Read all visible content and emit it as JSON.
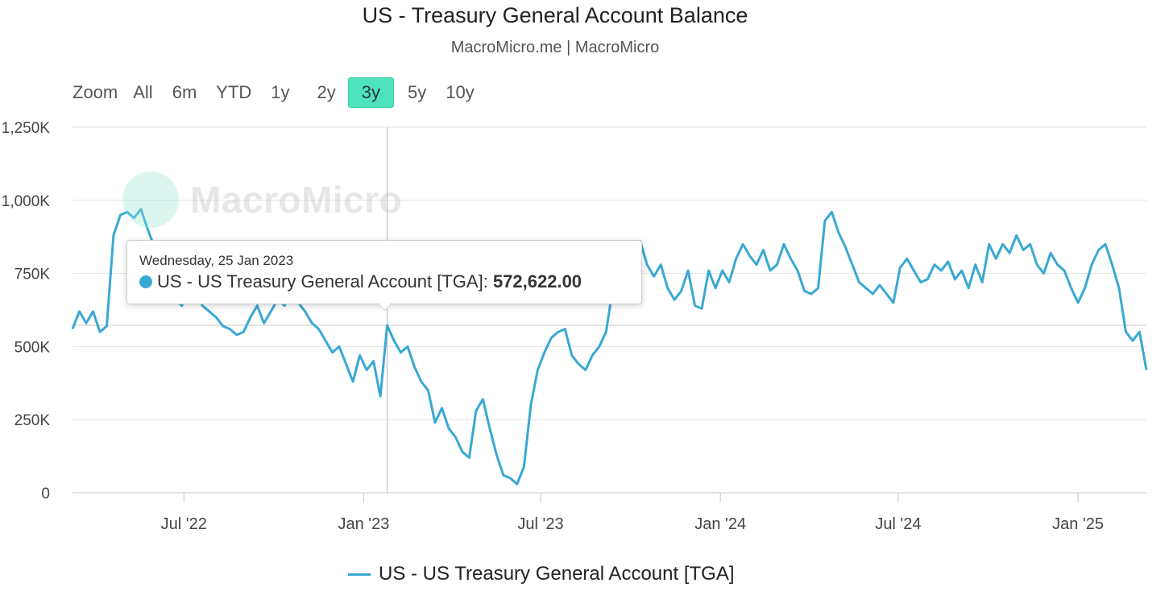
{
  "header": {
    "title": "US - Treasury General Account Balance",
    "subtitle": "MacroMicro.me | MacroMicro"
  },
  "range_selector": {
    "zoom_label": "Zoom",
    "buttons": [
      "All",
      "6m",
      "YTD",
      "1y",
      "2y",
      "3y",
      "5y",
      "10y"
    ],
    "active": "3y",
    "active_color": "#4fe3bb"
  },
  "watermark": {
    "text": "MacroMicro"
  },
  "tooltip": {
    "date": "Wednesday, 25 Jan 2023",
    "series_label": "US - US Treasury General Account [TGA]",
    "value": "572,622.00",
    "x": "2023-01-25",
    "y": 572622
  },
  "legend": {
    "label": "US - US Treasury General Account [TGA]",
    "color": "#3aa8d4"
  },
  "chart_data": {
    "type": "line",
    "x_type": "date",
    "ylim": [
      0,
      1250000
    ],
    "y_ticks": [
      0,
      250000,
      500000,
      750000,
      1000000,
      1250000
    ],
    "y_tick_labels": [
      "0",
      "250K",
      "500K",
      "750K",
      "1,000K",
      "1,250K"
    ],
    "x_ticks": [
      "2022-07-01",
      "2023-01-01",
      "2023-07-01",
      "2024-01-01",
      "2024-07-01",
      "2025-01-01"
    ],
    "x_tick_labels": [
      "Jul '22",
      "Jan '23",
      "Jul '23",
      "Jan '24",
      "Jul '24",
      "Jan '25"
    ],
    "xlim": [
      "2022-03-09",
      "2025-03-12"
    ],
    "grid": true,
    "legend_position": "bottom",
    "series": [
      {
        "name": "US - US Treasury General Account [TGA]",
        "color": "#3aa8d4",
        "points": [
          [
            "2022-03-09",
            560000
          ],
          [
            "2022-03-16",
            620000
          ],
          [
            "2022-03-23",
            580000
          ],
          [
            "2022-03-30",
            620000
          ],
          [
            "2022-04-06",
            550000
          ],
          [
            "2022-04-13",
            570000
          ],
          [
            "2022-04-20",
            880000
          ],
          [
            "2022-04-27",
            950000
          ],
          [
            "2022-05-04",
            960000
          ],
          [
            "2022-05-11",
            940000
          ],
          [
            "2022-05-18",
            970000
          ],
          [
            "2022-05-25",
            900000
          ],
          [
            "2022-06-01",
            840000
          ],
          [
            "2022-06-08",
            760000
          ],
          [
            "2022-06-15",
            700000
          ],
          [
            "2022-06-22",
            660000
          ],
          [
            "2022-06-29",
            640000
          ],
          [
            "2022-07-06",
            700000
          ],
          [
            "2022-07-13",
            680000
          ],
          [
            "2022-07-20",
            640000
          ],
          [
            "2022-07-27",
            620000
          ],
          [
            "2022-08-03",
            600000
          ],
          [
            "2022-08-10",
            570000
          ],
          [
            "2022-08-17",
            560000
          ],
          [
            "2022-08-24",
            540000
          ],
          [
            "2022-08-31",
            550000
          ],
          [
            "2022-09-07",
            600000
          ],
          [
            "2022-09-14",
            640000
          ],
          [
            "2022-09-21",
            580000
          ],
          [
            "2022-09-28",
            620000
          ],
          [
            "2022-10-05",
            660000
          ],
          [
            "2022-10-12",
            640000
          ],
          [
            "2022-10-19",
            680000
          ],
          [
            "2022-10-26",
            650000
          ],
          [
            "2022-11-02",
            620000
          ],
          [
            "2022-11-09",
            580000
          ],
          [
            "2022-11-16",
            560000
          ],
          [
            "2022-11-23",
            520000
          ],
          [
            "2022-11-30",
            480000
          ],
          [
            "2022-12-07",
            500000
          ],
          [
            "2022-12-14",
            440000
          ],
          [
            "2022-12-21",
            380000
          ],
          [
            "2022-12-28",
            470000
          ],
          [
            "2023-01-04",
            420000
          ],
          [
            "2023-01-11",
            450000
          ],
          [
            "2023-01-18",
            330000
          ],
          [
            "2023-01-25",
            572622
          ],
          [
            "2023-02-01",
            520000
          ],
          [
            "2023-02-08",
            480000
          ],
          [
            "2023-02-15",
            500000
          ],
          [
            "2023-02-22",
            430000
          ],
          [
            "2023-03-01",
            380000
          ],
          [
            "2023-03-08",
            350000
          ],
          [
            "2023-03-15",
            240000
          ],
          [
            "2023-03-22",
            290000
          ],
          [
            "2023-03-29",
            220000
          ],
          [
            "2023-04-05",
            190000
          ],
          [
            "2023-04-12",
            140000
          ],
          [
            "2023-04-19",
            120000
          ],
          [
            "2023-04-26",
            280000
          ],
          [
            "2023-05-03",
            320000
          ],
          [
            "2023-05-10",
            220000
          ],
          [
            "2023-05-17",
            130000
          ],
          [
            "2023-05-24",
            60000
          ],
          [
            "2023-05-31",
            50000
          ],
          [
            "2023-06-07",
            30000
          ],
          [
            "2023-06-14",
            90000
          ],
          [
            "2023-06-21",
            300000
          ],
          [
            "2023-06-28",
            420000
          ],
          [
            "2023-07-05",
            480000
          ],
          [
            "2023-07-12",
            530000
          ],
          [
            "2023-07-19",
            550000
          ],
          [
            "2023-07-26",
            560000
          ],
          [
            "2023-08-02",
            470000
          ],
          [
            "2023-08-09",
            440000
          ],
          [
            "2023-08-16",
            420000
          ],
          [
            "2023-08-23",
            470000
          ],
          [
            "2023-08-30",
            500000
          ],
          [
            "2023-09-06",
            550000
          ],
          [
            "2023-09-13",
            700000
          ],
          [
            "2023-09-20",
            780000
          ],
          [
            "2023-09-27",
            790000
          ],
          [
            "2023-10-04",
            830000
          ],
          [
            "2023-10-11",
            860000
          ],
          [
            "2023-10-18",
            780000
          ],
          [
            "2023-10-25",
            740000
          ],
          [
            "2023-11-01",
            780000
          ],
          [
            "2023-11-08",
            700000
          ],
          [
            "2023-11-15",
            660000
          ],
          [
            "2023-11-22",
            690000
          ],
          [
            "2023-11-29",
            760000
          ],
          [
            "2023-12-06",
            640000
          ],
          [
            "2023-12-13",
            630000
          ],
          [
            "2023-12-20",
            760000
          ],
          [
            "2023-12-27",
            700000
          ],
          [
            "2024-01-03",
            760000
          ],
          [
            "2024-01-10",
            720000
          ],
          [
            "2024-01-17",
            800000
          ],
          [
            "2024-01-24",
            850000
          ],
          [
            "2024-01-31",
            810000
          ],
          [
            "2024-02-07",
            780000
          ],
          [
            "2024-02-14",
            830000
          ],
          [
            "2024-02-21",
            760000
          ],
          [
            "2024-02-28",
            780000
          ],
          [
            "2024-03-06",
            850000
          ],
          [
            "2024-03-13",
            800000
          ],
          [
            "2024-03-20",
            760000
          ],
          [
            "2024-03-27",
            690000
          ],
          [
            "2024-04-03",
            680000
          ],
          [
            "2024-04-10",
            700000
          ],
          [
            "2024-04-17",
            930000
          ],
          [
            "2024-04-24",
            960000
          ],
          [
            "2024-05-01",
            890000
          ],
          [
            "2024-05-08",
            840000
          ],
          [
            "2024-05-15",
            780000
          ],
          [
            "2024-05-22",
            720000
          ],
          [
            "2024-05-29",
            700000
          ],
          [
            "2024-06-05",
            680000
          ],
          [
            "2024-06-12",
            710000
          ],
          [
            "2024-06-19",
            680000
          ],
          [
            "2024-06-26",
            650000
          ],
          [
            "2024-07-03",
            770000
          ],
          [
            "2024-07-10",
            800000
          ],
          [
            "2024-07-17",
            760000
          ],
          [
            "2024-07-24",
            720000
          ],
          [
            "2024-07-31",
            730000
          ],
          [
            "2024-08-07",
            780000
          ],
          [
            "2024-08-14",
            760000
          ],
          [
            "2024-08-21",
            790000
          ],
          [
            "2024-08-28",
            730000
          ],
          [
            "2024-09-04",
            760000
          ],
          [
            "2024-09-11",
            700000
          ],
          [
            "2024-09-18",
            780000
          ],
          [
            "2024-09-25",
            720000
          ],
          [
            "2024-10-02",
            850000
          ],
          [
            "2024-10-09",
            800000
          ],
          [
            "2024-10-16",
            850000
          ],
          [
            "2024-10-23",
            820000
          ],
          [
            "2024-10-30",
            880000
          ],
          [
            "2024-11-06",
            830000
          ],
          [
            "2024-11-13",
            850000
          ],
          [
            "2024-11-20",
            780000
          ],
          [
            "2024-11-27",
            750000
          ],
          [
            "2024-12-04",
            820000
          ],
          [
            "2024-12-11",
            780000
          ],
          [
            "2024-12-18",
            760000
          ],
          [
            "2024-12-25",
            700000
          ],
          [
            "2025-01-01",
            650000
          ],
          [
            "2025-01-08",
            700000
          ],
          [
            "2025-01-15",
            780000
          ],
          [
            "2025-01-22",
            830000
          ],
          [
            "2025-01-29",
            850000
          ],
          [
            "2025-02-05",
            780000
          ],
          [
            "2025-02-12",
            700000
          ],
          [
            "2025-02-19",
            550000
          ],
          [
            "2025-02-26",
            520000
          ],
          [
            "2025-03-05",
            550000
          ],
          [
            "2025-03-12",
            420000
          ]
        ]
      }
    ]
  }
}
